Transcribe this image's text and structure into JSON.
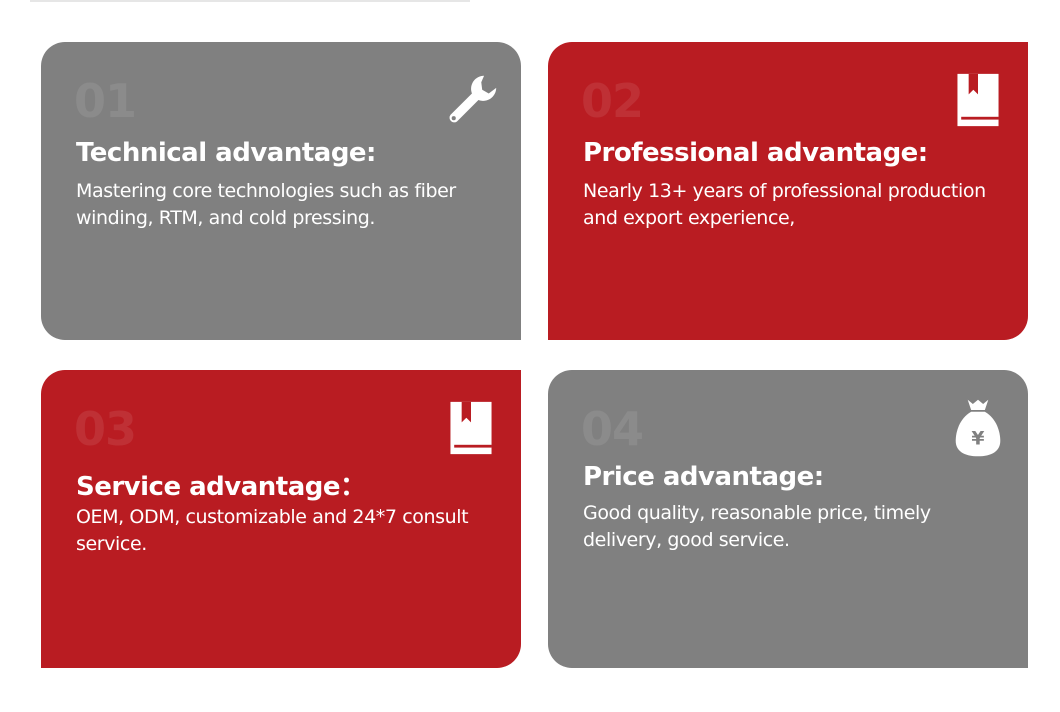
{
  "colors": {
    "gray": "#808080",
    "red": "#b91c22",
    "text": "#ffffff"
  },
  "cards": [
    {
      "number": "01",
      "title": "Technical advantage:",
      "description": "Mastering core technologies such as fiber winding, RTM, and cold pressing.",
      "icon": "wrench-icon",
      "color": "gray"
    },
    {
      "number": "02",
      "title": "Professional advantage:",
      "description": "Nearly 13+ years of professional production and export experience,",
      "icon": "book-icon",
      "color": "red"
    },
    {
      "number": "03",
      "title": "Service advantage：",
      "description": "OEM, ODM, customizable and 24*7 consult service.",
      "icon": "book-icon",
      "color": "red"
    },
    {
      "number": "04",
      "title": "Price advantage:",
      "description": "Good quality, reasonable price, timely delivery, good service.",
      "icon": "money-bag-yen-icon",
      "color": "gray"
    }
  ]
}
